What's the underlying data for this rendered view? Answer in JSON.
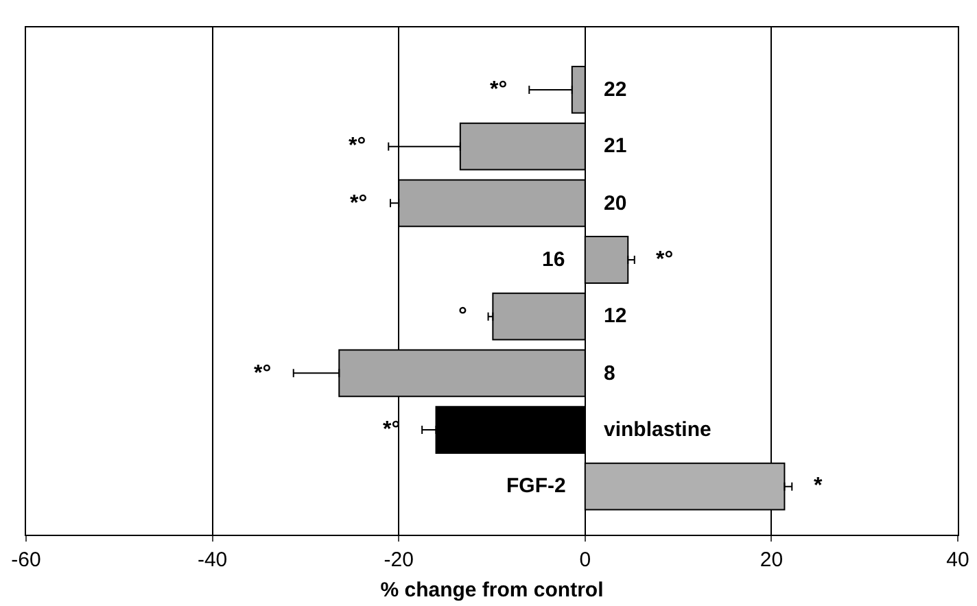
{
  "chart_data": {
    "type": "bar",
    "orientation": "horizontal",
    "xlabel": "% change from control",
    "categories": [
      "22",
      "21",
      "20",
      "16",
      "12",
      "8",
      "vinblastine",
      "FGF-2"
    ],
    "values": [
      -1.4,
      -13.4,
      -20,
      4.6,
      -9.9,
      -26.4,
      -16,
      21.4
    ],
    "colors": [
      "#a6a6a6",
      "#a6a6a6",
      "#a6a6a6",
      "#a6a6a6",
      "#a6a6a6",
      "#a6a6a6",
      "#000000",
      "#b0b0b0"
    ],
    "errors": [
      [
        -6,
        -1.4
      ],
      [
        -21.1,
        -13.4
      ],
      [
        -20.9,
        -20
      ],
      [
        4.6,
        5.3
      ],
      [
        -10.4,
        -9.9
      ],
      [
        -31.3,
        -26.4
      ],
      [
        -17.5,
        -16
      ],
      [
        21.4,
        22.2
      ]
    ],
    "xlim": [
      -60,
      40
    ],
    "xticks": [
      -60,
      -40,
      -20,
      0,
      20,
      40
    ],
    "grid": "x",
    "annotations": [
      {
        "text": "*°",
        "x": -6,
        "y": "22"
      },
      {
        "text": "*°",
        "x": -21.1,
        "y": "21"
      },
      {
        "text": "*°",
        "x": -20.9,
        "y": "20"
      },
      {
        "text": "*°",
        "x": 5.3,
        "y": "16"
      },
      {
        "text": "°",
        "x": -10.4,
        "y": "12"
      },
      {
        "text": "*°",
        "x": -31.3,
        "y": "8"
      },
      {
        "text": "*°",
        "x": -17.5,
        "y": "vinblastine"
      },
      {
        "text": "*",
        "x": 22.2,
        "y": "FGF-2"
      }
    ]
  }
}
